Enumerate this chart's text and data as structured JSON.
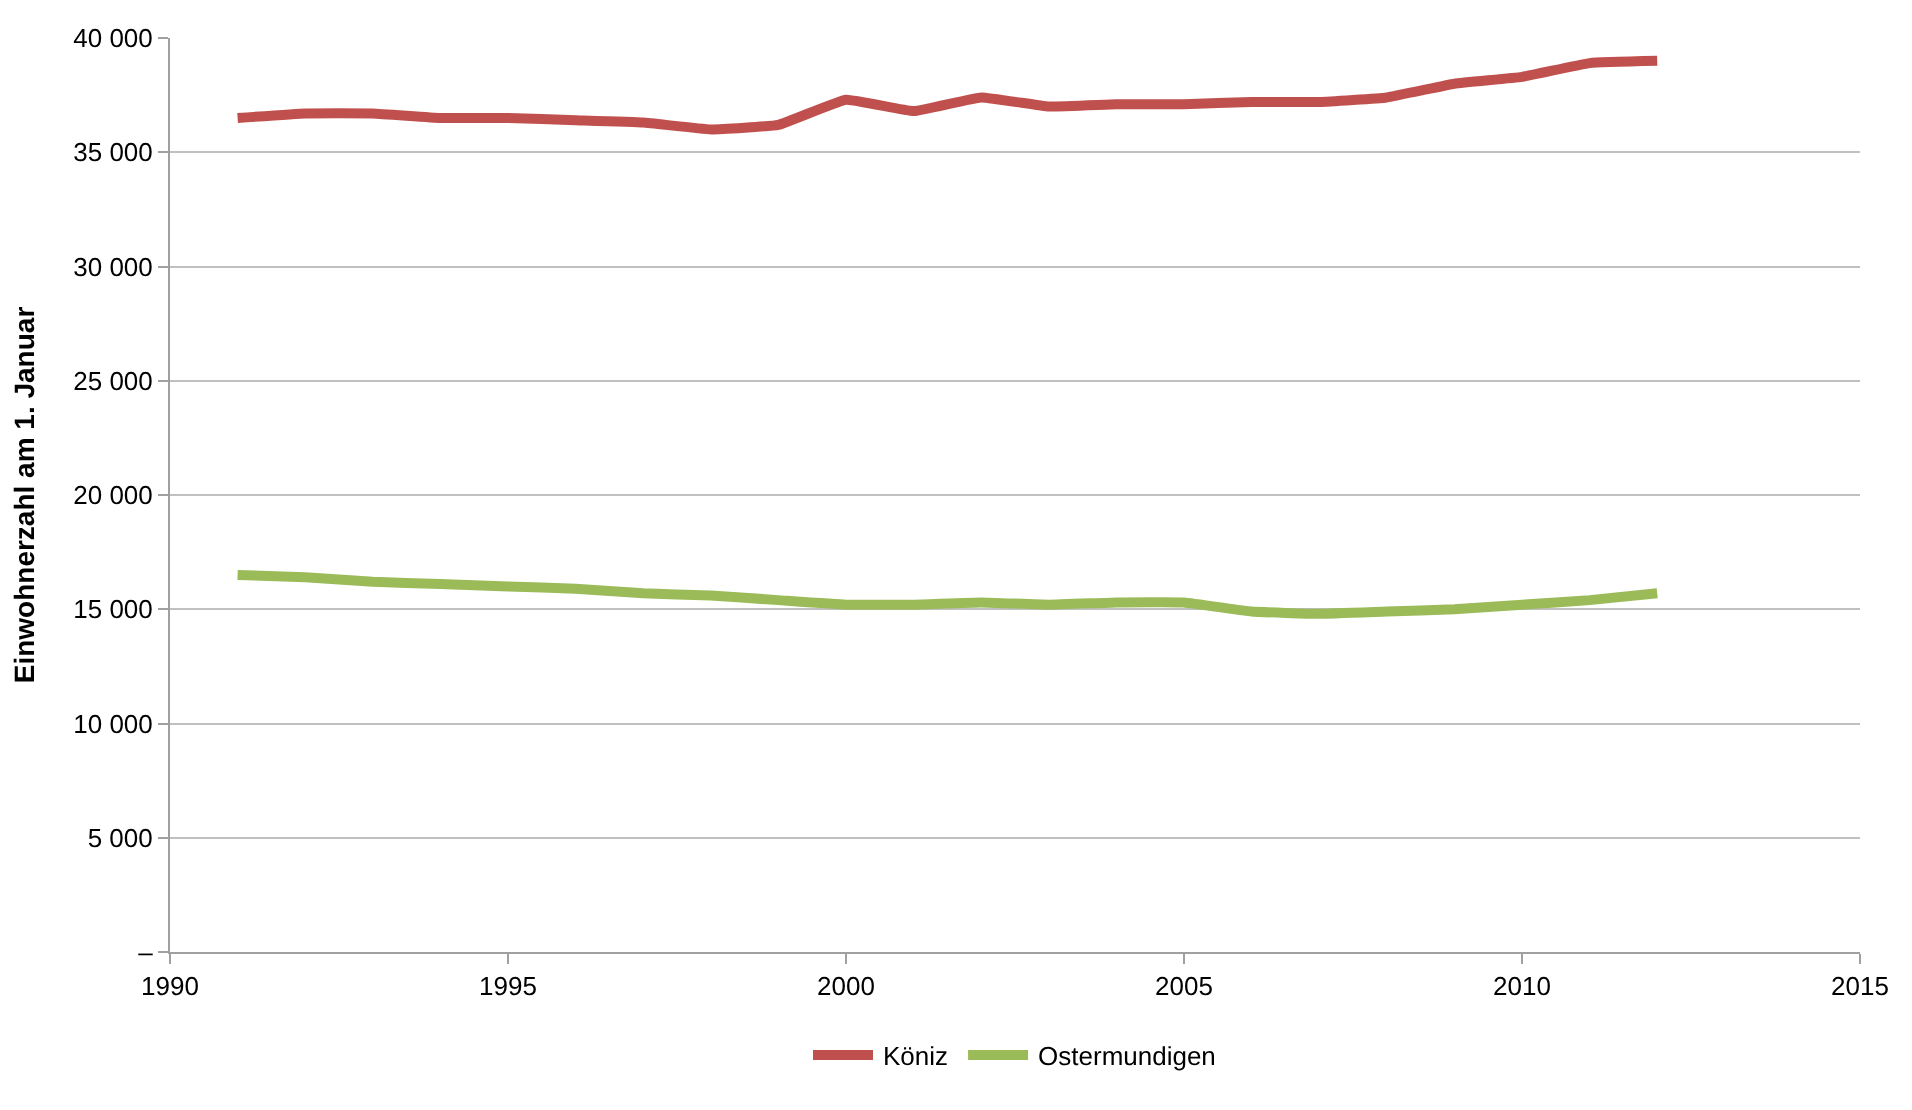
{
  "chart_data": {
    "type": "line",
    "ylabel": "Einwohnerzahl am 1. Januar",
    "x": [
      1991,
      1992,
      1993,
      1994,
      1995,
      1996,
      1997,
      1998,
      1999,
      2000,
      2001,
      2002,
      2003,
      2004,
      2005,
      2006,
      2007,
      2008,
      2009,
      2010,
      2011,
      2012
    ],
    "series": [
      {
        "name": "Köniz",
        "color": "#c0504d",
        "values": [
          36500,
          36700,
          36700,
          36500,
          36500,
          36400,
          36300,
          36000,
          36200,
          37300,
          36800,
          37400,
          37000,
          37100,
          37100,
          37200,
          37200,
          37400,
          38000,
          38300,
          38900,
          39000
        ]
      },
      {
        "name": "Ostermundigen",
        "color": "#9bbb59",
        "values": [
          16500,
          16400,
          16200,
          16100,
          16000,
          15900,
          15700,
          15600,
          15400,
          15200,
          15200,
          15300,
          15200,
          15300,
          15300,
          14900,
          14800,
          14900,
          15000,
          15200,
          15400,
          15700
        ]
      }
    ],
    "xlim": [
      1990,
      2015
    ],
    "xticks": [
      1990,
      1995,
      2000,
      2005,
      2010,
      2015
    ],
    "ylim": [
      0,
      40000
    ],
    "yticks": [
      {
        "value": 0,
        "label": "–"
      },
      {
        "value": 5000,
        "label": "5 000"
      },
      {
        "value": 10000,
        "label": "10 000"
      },
      {
        "value": 15000,
        "label": "15 000"
      },
      {
        "value": 20000,
        "label": "20 000"
      },
      {
        "value": 25000,
        "label": "25 000"
      },
      {
        "value": 30000,
        "label": "30 000"
      },
      {
        "value": 35000,
        "label": "35 000"
      },
      {
        "value": 40000,
        "label": "40 000"
      }
    ],
    "grid": "y",
    "legend": "bottom",
    "marker": "none",
    "line_style": "solid"
  }
}
